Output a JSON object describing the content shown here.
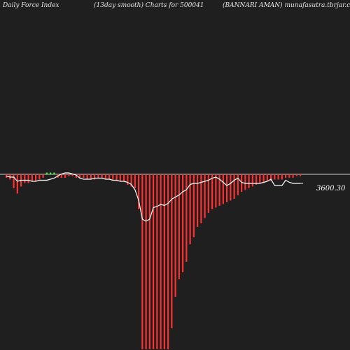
{
  "header": {
    "left": "Daily Force  Index",
    "center": "(13day smooth) Charts for 500041",
    "right": "(BANNARI AMAN) munafasutra.tbrjar.com"
  },
  "colors": {
    "background": "#1f1f1f",
    "negative_bar": "#ff3030",
    "positive_bar": "#33ff33",
    "zero_line": "#cccccc",
    "price_line": "#ffffff",
    "text": "#e6e6e6"
  },
  "chart_data": {
    "type": "bar",
    "title": "",
    "xlabel": "",
    "ylabel": "",
    "ylim": [
      -100,
      20
    ],
    "grid": false,
    "legend": "none",
    "series": [
      {
        "kind": "force_index_bars",
        "values": [
          -2,
          -3,
          -8,
          -11,
          -7,
          -5,
          -5,
          -4,
          -4,
          -3,
          -2,
          1,
          1,
          1,
          -2,
          -2,
          -2,
          -1,
          -1,
          -2,
          -2,
          -2,
          -3,
          -3,
          -3,
          -2,
          -2,
          -3,
          -3,
          -3,
          -4,
          -4,
          -4,
          -6,
          -7,
          -8,
          -20,
          -100,
          -100,
          -100,
          -100,
          -100,
          -100,
          -100,
          -100,
          -88,
          -70,
          -60,
          -56,
          -50,
          -40,
          -36,
          -30,
          -28,
          -25,
          -22,
          -20,
          -19,
          -18,
          -17,
          -16,
          -15,
          -14,
          -12,
          -10,
          -9,
          -8,
          -7,
          -6,
          -5,
          -5,
          -4,
          -4,
          -3,
          -3,
          -3,
          -2,
          -2,
          -2,
          -1,
          -1
        ],
        "labeled_value": "3600.30"
      },
      {
        "kind": "price_line",
        "values": [
          3.5,
          3.0,
          3.0,
          1.0,
          1.5,
          1.5,
          1.5,
          1.0,
          1.0,
          1.5,
          1.5,
          1.5,
          2.0,
          2.5,
          3.5,
          4.5,
          5.0,
          5.0,
          4.5,
          4.0,
          2.5,
          2.0,
          2.0,
          2.0,
          2.5,
          2.5,
          2.5,
          2.0,
          2.0,
          1.5,
          1.5,
          1.0,
          1.0,
          0.5,
          -0.5,
          -3.0,
          -8.0,
          -17.0,
          -18.0,
          -17.0,
          -11.5,
          -11.0,
          -10.0,
          -10.5,
          -9.5,
          -7.5,
          -6.5,
          -5.5,
          -4.0,
          -3.0,
          -0.5,
          0.0,
          0.0,
          0.5,
          1.0,
          1.5,
          2.5,
          3.0,
          2.0,
          0.5,
          -1.0,
          0.0,
          1.5,
          2.5,
          0.5,
          0.0,
          0.0,
          0.0,
          0.0,
          0.0,
          0.5,
          1.0,
          2.0,
          -1.0,
          -1.0,
          -1.0,
          1.5,
          0.5,
          0.0,
          0.0,
          0.0
        ]
      }
    ]
  }
}
